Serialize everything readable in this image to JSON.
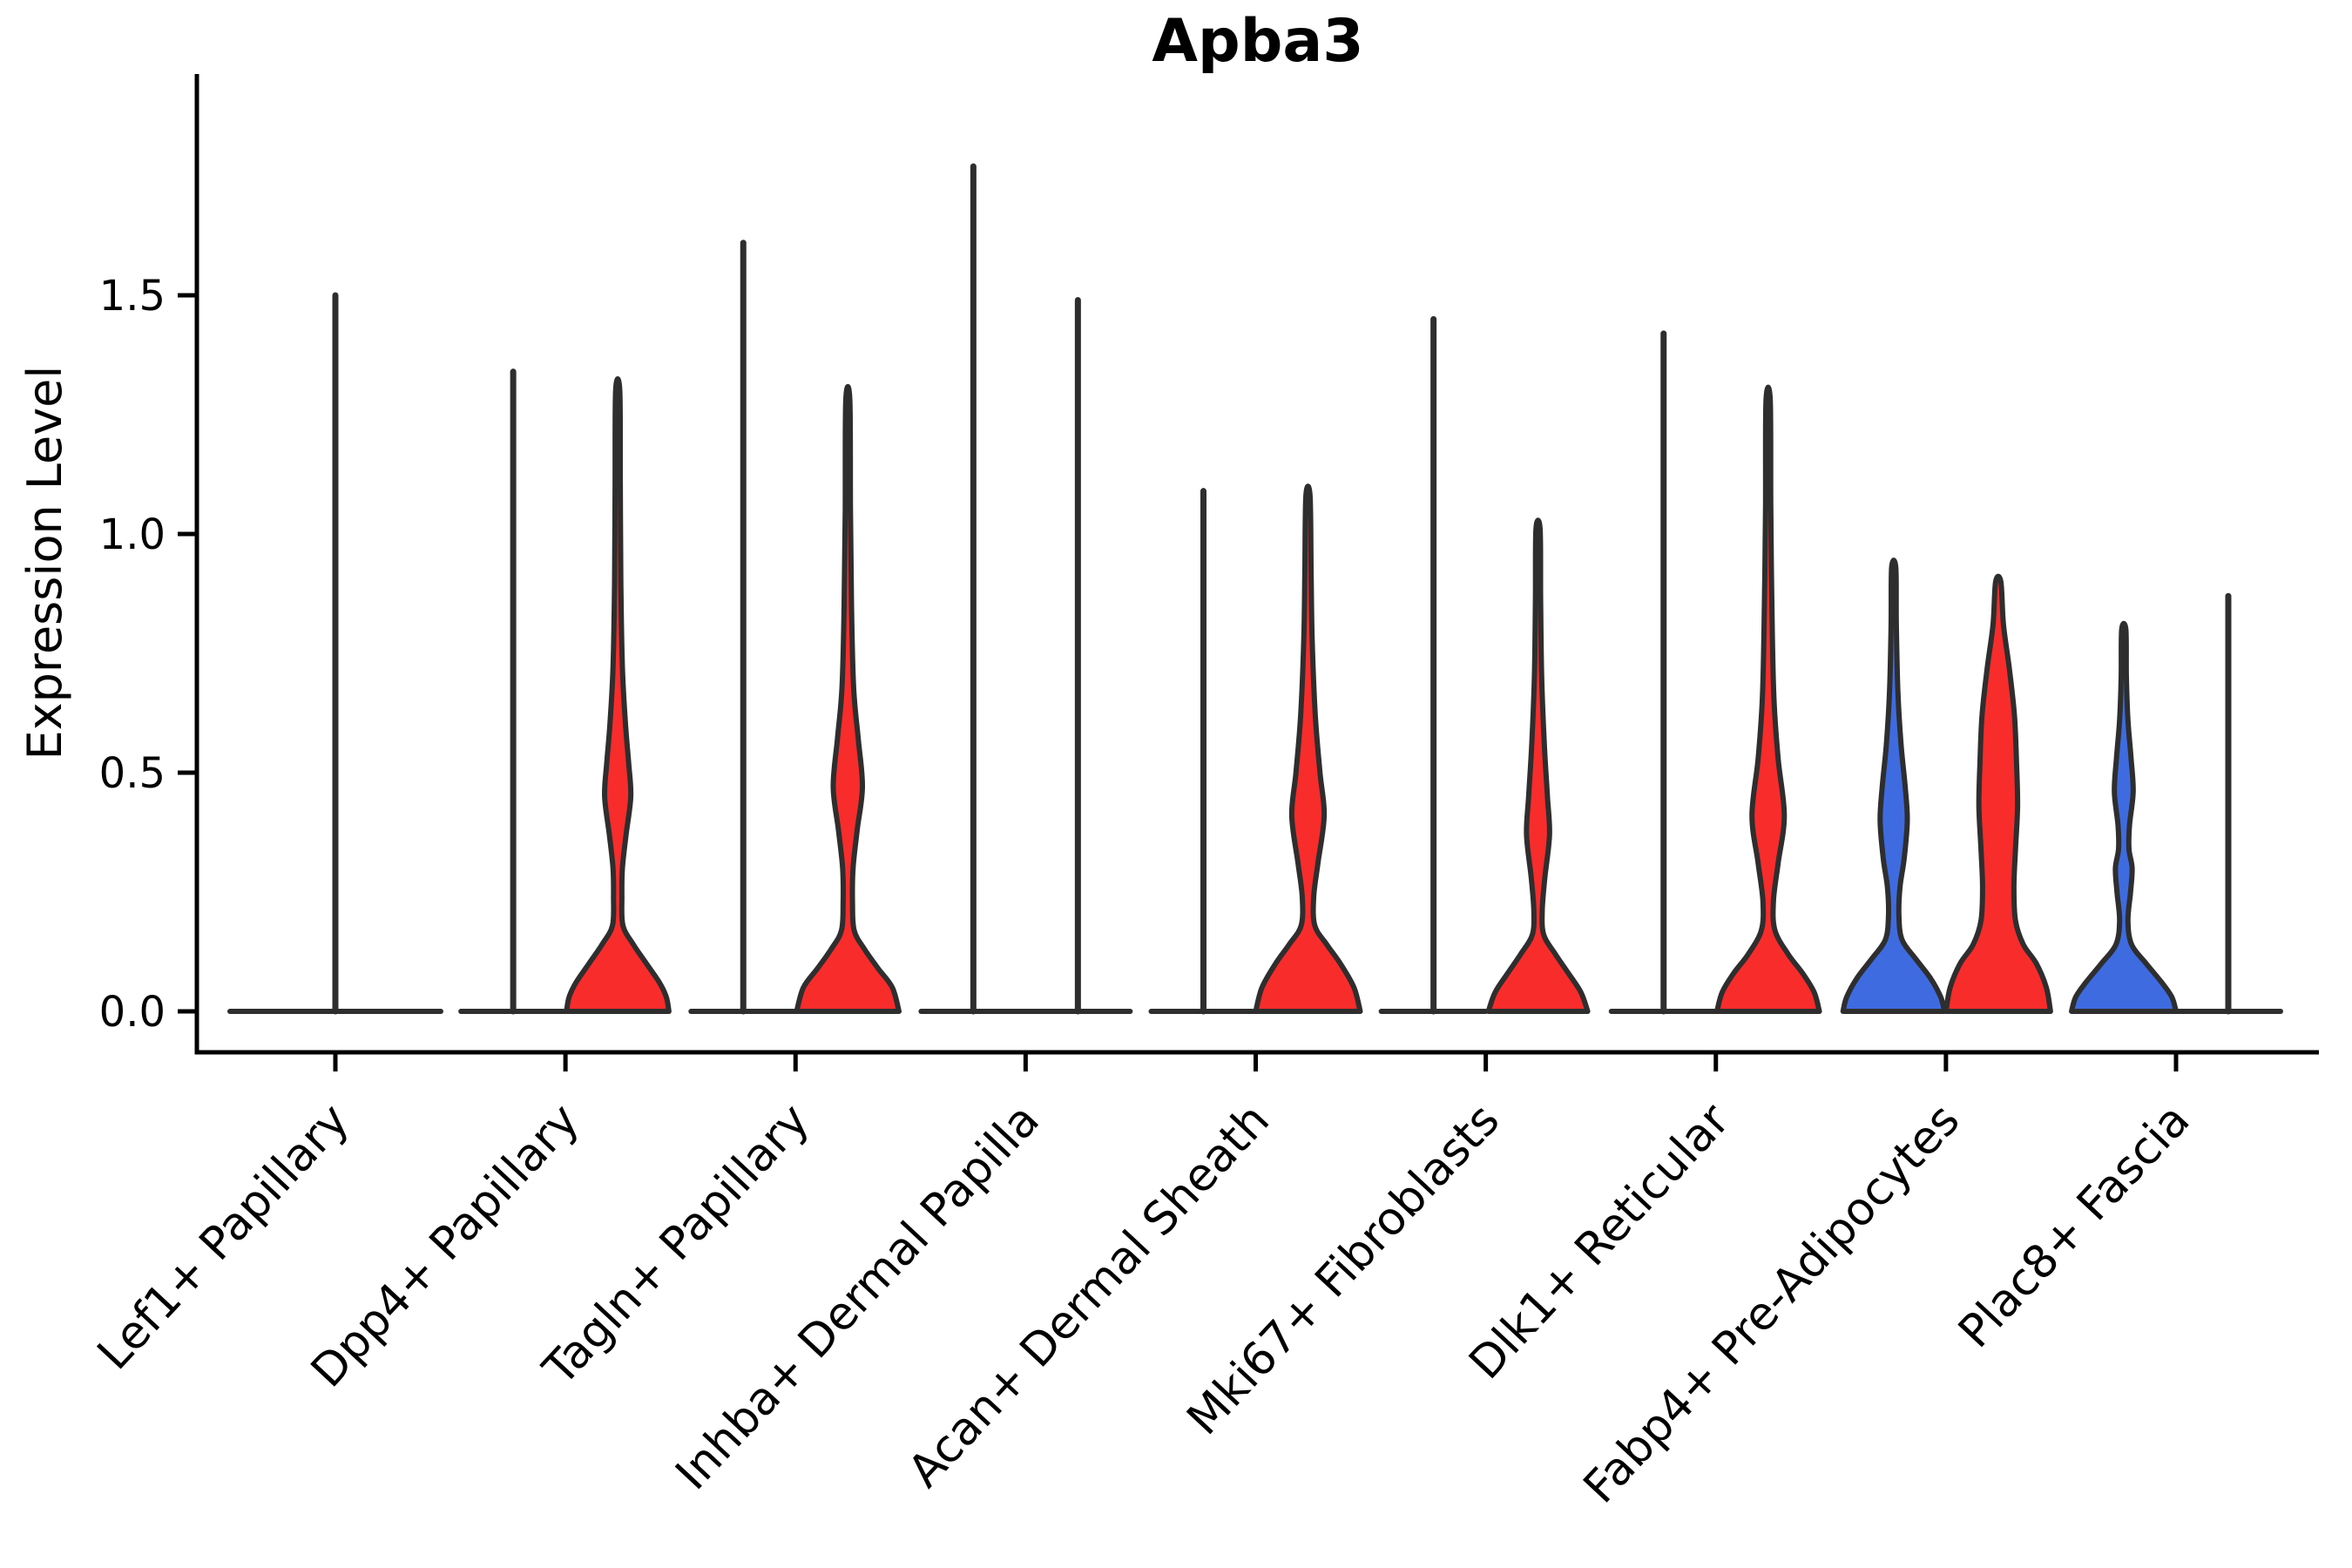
{
  "chart_data": {
    "type": "violin",
    "title": "Apba3",
    "ylabel": "Expression Level",
    "xlabel": "",
    "grid": false,
    "legend": "none",
    "ylim": [
      -0.09,
      1.96
    ],
    "y_ticks": [
      {
        "value": 0.0,
        "label": "0.0"
      },
      {
        "value": 0.5,
        "label": "0.5"
      },
      {
        "value": 1.0,
        "label": "1.0"
      },
      {
        "value": 1.5,
        "label": "1.5"
      }
    ],
    "categories": [
      "Lef1+ Papillary",
      "Dpp4+ Papillary",
      "Tagln+ Papillary",
      "Inhba+ Dermal Papilla",
      "Acan+ Dermal Sheath",
      "Mki67+ Fibroblasts",
      "Dlk1+ Reticular",
      "Fabp4+ Pre-Adipocytes",
      "Plac8+ Fascia"
    ],
    "colors": {
      "red": "#F92C2C",
      "blue": "#3E6BE0",
      "outline": "#2E2E2E",
      "axis": "#000000"
    },
    "groups": [
      {
        "label": "Lef1+ Papillary",
        "violins": [
          {
            "position": "full",
            "kind": "flat-spike",
            "color": "none",
            "peak": 1.5
          }
        ]
      },
      {
        "label": "Dpp4+ Papillary",
        "violins": [
          {
            "position": "left",
            "kind": "flat-spike",
            "color": "none",
            "peak": 1.34
          },
          {
            "position": "right",
            "kind": "violin",
            "color": "red",
            "peak": 1.3,
            "profile": [
              [
                1.3,
                0.04
              ],
              [
                1.1,
                0.05
              ],
              [
                0.9,
                0.06
              ],
              [
                0.72,
                0.09
              ],
              [
                0.6,
                0.15
              ],
              [
                0.52,
                0.21
              ],
              [
                0.45,
                0.25
              ],
              [
                0.37,
                0.16
              ],
              [
                0.3,
                0.09
              ],
              [
                0.24,
                0.08
              ],
              [
                0.18,
                0.1
              ],
              [
                0.14,
                0.3
              ],
              [
                0.1,
                0.55
              ],
              [
                0.06,
                0.8
              ],
              [
                0.03,
                0.93
              ],
              [
                0.0,
                0.98
              ]
            ]
          }
        ]
      },
      {
        "label": "Tagln+ Papillary",
        "violins": [
          {
            "position": "left",
            "kind": "flat-spike",
            "color": "none",
            "peak": 1.61
          },
          {
            "position": "right",
            "kind": "violin",
            "color": "red",
            "peak": 1.28,
            "profile": [
              [
                1.28,
                0.04
              ],
              [
                1.05,
                0.05
              ],
              [
                0.85,
                0.07
              ],
              [
                0.68,
                0.11
              ],
              [
                0.57,
                0.2
              ],
              [
                0.47,
                0.28
              ],
              [
                0.38,
                0.18
              ],
              [
                0.3,
                0.1
              ],
              [
                0.23,
                0.09
              ],
              [
                0.17,
                0.12
              ],
              [
                0.13,
                0.32
              ],
              [
                0.09,
                0.58
              ],
              [
                0.05,
                0.85
              ],
              [
                0.0,
                0.98
              ]
            ]
          }
        ]
      },
      {
        "label": "Inhba+ Dermal Papilla",
        "violins": [
          {
            "position": "left",
            "kind": "flat-spike",
            "color": "none",
            "peak": 1.77
          },
          {
            "position": "right",
            "kind": "flat-spike",
            "color": "none",
            "peak": 1.49
          }
        ]
      },
      {
        "label": "Acan+ Dermal Sheath",
        "violins": [
          {
            "position": "left",
            "kind": "flat-spike",
            "color": "none",
            "peak": 1.09
          },
          {
            "position": "right",
            "kind": "violin",
            "color": "red",
            "peak": 1.08,
            "profile": [
              [
                1.08,
                0.04
              ],
              [
                0.92,
                0.06
              ],
              [
                0.78,
                0.08
              ],
              [
                0.62,
                0.14
              ],
              [
                0.5,
                0.23
              ],
              [
                0.41,
                0.31
              ],
              [
                0.31,
                0.19
              ],
              [
                0.24,
                0.11
              ],
              [
                0.18,
                0.13
              ],
              [
                0.14,
                0.36
              ],
              [
                0.1,
                0.62
              ],
              [
                0.05,
                0.88
              ],
              [
                0.0,
                1.0
              ]
            ]
          }
        ]
      },
      {
        "label": "Mki67+ Fibroblasts",
        "violins": [
          {
            "position": "left",
            "kind": "flat-spike",
            "color": "none",
            "peak": 1.45
          },
          {
            "position": "right",
            "kind": "violin",
            "color": "red",
            "peak": 1.01,
            "profile": [
              [
                1.01,
                0.04
              ],
              [
                0.86,
                0.05
              ],
              [
                0.7,
                0.07
              ],
              [
                0.56,
                0.12
              ],
              [
                0.45,
                0.18
              ],
              [
                0.37,
                0.22
              ],
              [
                0.28,
                0.13
              ],
              [
                0.21,
                0.08
              ],
              [
                0.16,
                0.11
              ],
              [
                0.12,
                0.33
              ],
              [
                0.08,
                0.58
              ],
              [
                0.04,
                0.82
              ],
              [
                0.0,
                0.95
              ]
            ]
          }
        ]
      },
      {
        "label": "Dlk1+ Reticular",
        "violins": [
          {
            "position": "left",
            "kind": "flat-spike",
            "color": "none",
            "peak": 1.42
          },
          {
            "position": "right",
            "kind": "violin",
            "color": "red",
            "peak": 1.28,
            "profile": [
              [
                1.28,
                0.04
              ],
              [
                1.06,
                0.05
              ],
              [
                0.86,
                0.07
              ],
              [
                0.66,
                0.11
              ],
              [
                0.53,
                0.19
              ],
              [
                0.41,
                0.31
              ],
              [
                0.31,
                0.19
              ],
              [
                0.23,
                0.1
              ],
              [
                0.17,
                0.13
              ],
              [
                0.12,
                0.38
              ],
              [
                0.08,
                0.66
              ],
              [
                0.04,
                0.88
              ],
              [
                0.0,
                0.98
              ]
            ]
          }
        ]
      },
      {
        "label": "Fabp4+ Pre-Adipocytes",
        "violins": [
          {
            "position": "left",
            "kind": "violin",
            "color": "blue",
            "peak": 0.93,
            "profile": [
              [
                0.93,
                0.04
              ],
              [
                0.81,
                0.05
              ],
              [
                0.67,
                0.08
              ],
              [
                0.56,
                0.14
              ],
              [
                0.47,
                0.22
              ],
              [
                0.4,
                0.26
              ],
              [
                0.32,
                0.2
              ],
              [
                0.26,
                0.12
              ],
              [
                0.2,
                0.1
              ],
              [
                0.15,
                0.16
              ],
              [
                0.11,
                0.42
              ],
              [
                0.07,
                0.7
              ],
              [
                0.03,
                0.9
              ],
              [
                0.0,
                0.97
              ]
            ]
          },
          {
            "position": "right",
            "kind": "violin",
            "color": "red",
            "peak": 0.9,
            "profile": [
              [
                0.9,
                0.05
              ],
              [
                0.81,
                0.1
              ],
              [
                0.72,
                0.21
              ],
              [
                0.62,
                0.31
              ],
              [
                0.52,
                0.35
              ],
              [
                0.43,
                0.37
              ],
              [
                0.34,
                0.33
              ],
              [
                0.26,
                0.3
              ],
              [
                0.19,
                0.33
              ],
              [
                0.14,
                0.48
              ],
              [
                0.1,
                0.73
              ],
              [
                0.05,
                0.92
              ],
              [
                0.0,
                1.0
              ]
            ]
          }
        ]
      },
      {
        "label": "Plac8+ Fascia",
        "violins": [
          {
            "position": "left",
            "kind": "violin",
            "color": "blue",
            "peak": 0.8,
            "profile": [
              [
                0.8,
                0.04
              ],
              [
                0.7,
                0.05
              ],
              [
                0.61,
                0.08
              ],
              [
                0.53,
                0.14
              ],
              [
                0.46,
                0.18
              ],
              [
                0.39,
                0.11
              ],
              [
                0.34,
                0.1
              ],
              [
                0.3,
                0.16
              ],
              [
                0.25,
                0.13
              ],
              [
                0.19,
                0.08
              ],
              [
                0.14,
                0.15
              ],
              [
                0.1,
                0.43
              ],
              [
                0.06,
                0.73
              ],
              [
                0.03,
                0.92
              ],
              [
                0.0,
                1.0
              ]
            ]
          },
          {
            "position": "right",
            "kind": "flat-spike",
            "color": "none",
            "peak": 0.87
          }
        ]
      }
    ]
  }
}
